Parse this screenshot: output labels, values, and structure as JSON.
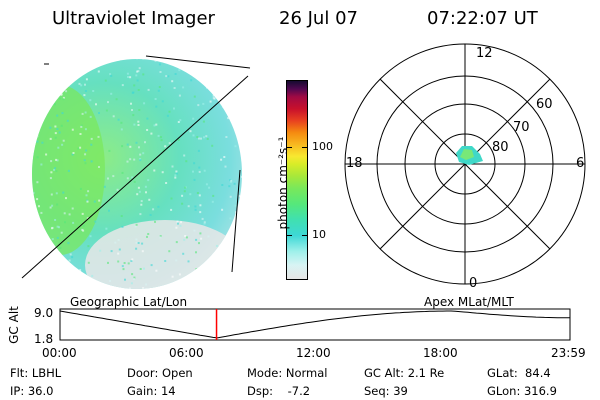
{
  "header": {
    "instrument": "Ultraviolet Imager",
    "date": "26 Jul 07",
    "time": "07:22:07 UT"
  },
  "colorbar": {
    "label": "photon cm⁻²s⁻¹",
    "ticks": [
      "100",
      "10"
    ]
  },
  "left_panel": {
    "caption": "Geographic Lat/Lon"
  },
  "right_panel": {
    "caption": "Apex MLat/MLT",
    "mlt_labels": {
      "top": "12",
      "left": "18",
      "right": "6",
      "bottom": "0"
    },
    "lat_labels": [
      "60",
      "70",
      "80"
    ]
  },
  "altitude_plot": {
    "axis_label": "GC Alt",
    "y_ticks": [
      "9.0",
      "1.8"
    ],
    "x_ticks": [
      "00:00",
      "06:00",
      "12:00",
      "18:00",
      "23:59"
    ],
    "marker_time": "07:22",
    "marker_color": "#ff0000"
  },
  "status": {
    "flt": "Flt: LBHL",
    "ip": "IP: 36.0",
    "door": "Door: Open",
    "gain": "Gain: 14",
    "mode": "Mode: Normal",
    "dsp": "Dsp:    -7.2",
    "gc_alt": "GC Alt: 2.1 Re",
    "seq": "Seq: 39",
    "glat": "GLat:  84.4",
    "glon": "GLon: 316.9"
  }
}
